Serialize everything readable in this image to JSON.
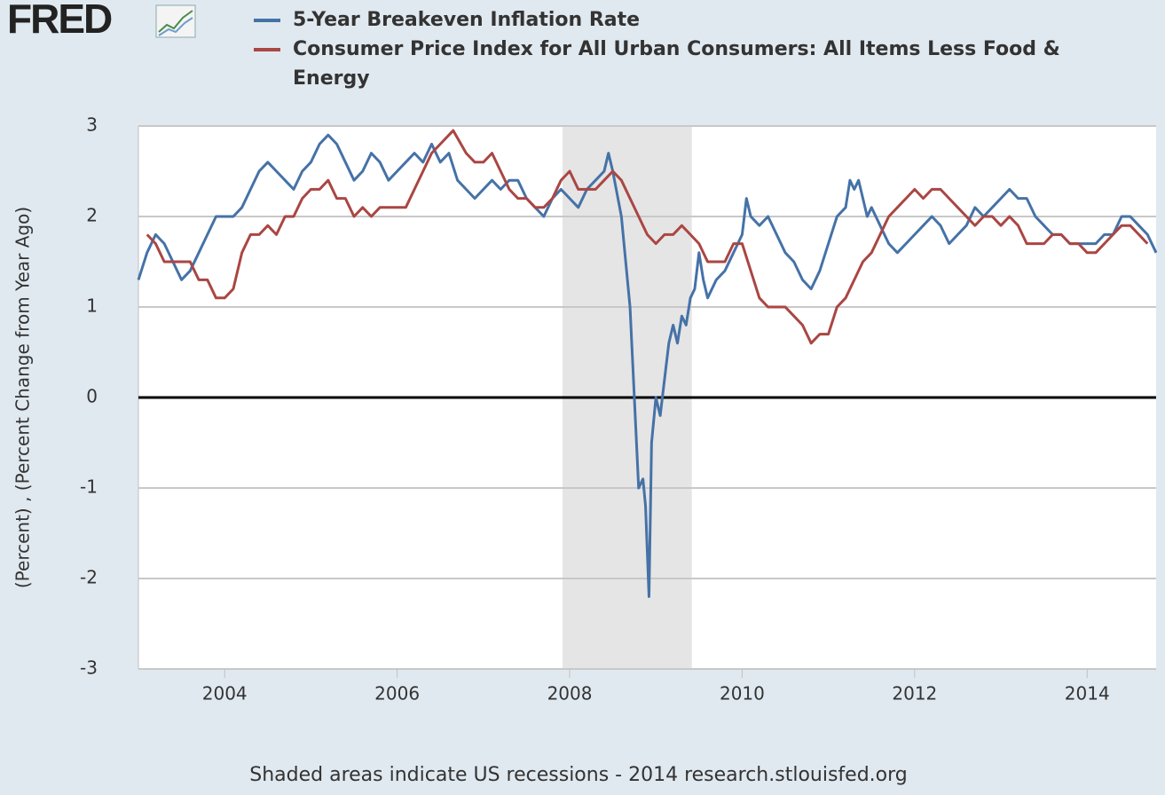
{
  "logo": "FRED",
  "chart_data": {
    "type": "line",
    "ylabel": "(Percent) , (Percent Change from Year Ago)",
    "source_note": "Shaded areas indicate US recessions - 2014 research.stlouisfed.org",
    "xlim": [
      2003.0,
      2014.8
    ],
    "xticks": [
      2004,
      2006,
      2008,
      2010,
      2012,
      2014
    ],
    "ylim": [
      -3,
      3
    ],
    "yticks": [
      -3,
      -2,
      -1,
      0,
      1,
      2,
      3
    ],
    "grid": true,
    "zero_line": true,
    "recessions": [
      {
        "start": 2007.917,
        "end": 2009.417
      }
    ],
    "series": [
      {
        "name": "5-Year Breakeven Inflation Rate",
        "color": "#4572a7",
        "x": [
          2003.0,
          2003.1,
          2003.2,
          2003.3,
          2003.4,
          2003.5,
          2003.6,
          2003.7,
          2003.8,
          2003.9,
          2004.0,
          2004.1,
          2004.2,
          2004.3,
          2004.4,
          2004.5,
          2004.6,
          2004.7,
          2004.8,
          2004.9,
          2005.0,
          2005.1,
          2005.2,
          2005.3,
          2005.4,
          2005.5,
          2005.6,
          2005.7,
          2005.8,
          2005.9,
          2006.0,
          2006.1,
          2006.2,
          2006.3,
          2006.4,
          2006.5,
          2006.6,
          2006.7,
          2006.8,
          2006.9,
          2007.0,
          2007.1,
          2007.2,
          2007.3,
          2007.4,
          2007.5,
          2007.6,
          2007.7,
          2007.8,
          2007.9,
          2008.0,
          2008.1,
          2008.2,
          2008.3,
          2008.4,
          2008.45,
          2008.5,
          2008.6,
          2008.65,
          2008.7,
          2008.75,
          2008.8,
          2008.85,
          2008.88,
          2008.92,
          2008.95,
          2009.0,
          2009.05,
          2009.1,
          2009.15,
          2009.2,
          2009.25,
          2009.3,
          2009.35,
          2009.4,
          2009.45,
          2009.5,
          2009.55,
          2009.6,
          2009.7,
          2009.8,
          2009.9,
          2010.0,
          2010.05,
          2010.1,
          2010.2,
          2010.3,
          2010.4,
          2010.5,
          2010.6,
          2010.7,
          2010.8,
          2010.9,
          2011.0,
          2011.1,
          2011.2,
          2011.25,
          2011.3,
          2011.35,
          2011.45,
          2011.5,
          2011.6,
          2011.7,
          2011.8,
          2011.9,
          2012.0,
          2012.1,
          2012.2,
          2012.3,
          2012.4,
          2012.5,
          2012.6,
          2012.7,
          2012.8,
          2012.9,
          2013.0,
          2013.1,
          2013.2,
          2013.3,
          2013.4,
          2013.5,
          2013.6,
          2013.7,
          2013.8,
          2013.9,
          2014.0,
          2014.1,
          2014.2,
          2014.3,
          2014.4,
          2014.5,
          2014.6,
          2014.7,
          2014.8
        ],
        "values": [
          1.3,
          1.6,
          1.8,
          1.7,
          1.5,
          1.3,
          1.4,
          1.6,
          1.8,
          2.0,
          2.0,
          2.0,
          2.1,
          2.3,
          2.5,
          2.6,
          2.5,
          2.4,
          2.3,
          2.5,
          2.6,
          2.8,
          2.9,
          2.8,
          2.6,
          2.4,
          2.5,
          2.7,
          2.6,
          2.4,
          2.5,
          2.6,
          2.7,
          2.6,
          2.8,
          2.6,
          2.7,
          2.4,
          2.3,
          2.2,
          2.3,
          2.4,
          2.3,
          2.4,
          2.4,
          2.2,
          2.1,
          2.0,
          2.2,
          2.3,
          2.2,
          2.1,
          2.3,
          2.4,
          2.5,
          2.7,
          2.5,
          2.0,
          1.5,
          1.0,
          0.0,
          -1.0,
          -0.9,
          -1.2,
          -2.2,
          -0.5,
          0.0,
          -0.2,
          0.2,
          0.6,
          0.8,
          0.6,
          0.9,
          0.8,
          1.1,
          1.2,
          1.6,
          1.3,
          1.1,
          1.3,
          1.4,
          1.6,
          1.8,
          2.2,
          2.0,
          1.9,
          2.0,
          1.8,
          1.6,
          1.5,
          1.3,
          1.2,
          1.4,
          1.7,
          2.0,
          2.1,
          2.4,
          2.3,
          2.4,
          2.0,
          2.1,
          1.9,
          1.7,
          1.6,
          1.7,
          1.8,
          1.9,
          2.0,
          1.9,
          1.7,
          1.8,
          1.9,
          2.1,
          2.0,
          2.1,
          2.2,
          2.3,
          2.2,
          2.2,
          2.0,
          1.9,
          1.8,
          1.8,
          1.7,
          1.7,
          1.7,
          1.7,
          1.8,
          1.8,
          2.0,
          2.0,
          1.9,
          1.8,
          1.6
        ]
      },
      {
        "name": "Consumer Price Index for All Urban Consumers: All Items Less Food & Energy",
        "color": "#aa4643",
        "x": [
          2003.1,
          2003.2,
          2003.3,
          2003.4,
          2003.5,
          2003.6,
          2003.7,
          2003.8,
          2003.9,
          2004.0,
          2004.1,
          2004.2,
          2004.3,
          2004.4,
          2004.5,
          2004.6,
          2004.7,
          2004.8,
          2004.9,
          2005.0,
          2005.1,
          2005.2,
          2005.3,
          2005.4,
          2005.5,
          2005.6,
          2005.7,
          2005.8,
          2005.9,
          2006.0,
          2006.1,
          2006.2,
          2006.3,
          2006.4,
          2006.5,
          2006.65,
          2006.8,
          2006.9,
          2007.0,
          2007.1,
          2007.2,
          2007.3,
          2007.4,
          2007.5,
          2007.6,
          2007.7,
          2007.8,
          2007.9,
          2008.0,
          2008.1,
          2008.2,
          2008.3,
          2008.4,
          2008.5,
          2008.6,
          2008.7,
          2008.8,
          2008.9,
          2009.0,
          2009.1,
          2009.2,
          2009.3,
          2009.4,
          2009.5,
          2009.6,
          2009.7,
          2009.8,
          2009.9,
          2010.0,
          2010.1,
          2010.2,
          2010.3,
          2010.4,
          2010.5,
          2010.6,
          2010.7,
          2010.8,
          2010.9,
          2011.0,
          2011.1,
          2011.2,
          2011.3,
          2011.4,
          2011.5,
          2011.6,
          2011.7,
          2011.8,
          2011.9,
          2012.0,
          2012.1,
          2012.2,
          2012.3,
          2012.4,
          2012.5,
          2012.6,
          2012.7,
          2012.8,
          2012.9,
          2013.0,
          2013.1,
          2013.2,
          2013.3,
          2013.4,
          2013.5,
          2013.6,
          2013.7,
          2013.8,
          2013.9,
          2014.0,
          2014.1,
          2014.2,
          2014.3,
          2014.4,
          2014.5,
          2014.6,
          2014.7
        ],
        "values": [
          1.8,
          1.7,
          1.5,
          1.5,
          1.5,
          1.5,
          1.3,
          1.3,
          1.1,
          1.1,
          1.2,
          1.6,
          1.8,
          1.8,
          1.9,
          1.8,
          2.0,
          2.0,
          2.2,
          2.3,
          2.3,
          2.4,
          2.2,
          2.2,
          2.0,
          2.1,
          2.0,
          2.1,
          2.1,
          2.1,
          2.1,
          2.3,
          2.5,
          2.7,
          2.8,
          2.95,
          2.7,
          2.6,
          2.6,
          2.7,
          2.5,
          2.3,
          2.2,
          2.2,
          2.1,
          2.1,
          2.2,
          2.4,
          2.5,
          2.3,
          2.3,
          2.3,
          2.4,
          2.5,
          2.4,
          2.2,
          2.0,
          1.8,
          1.7,
          1.8,
          1.8,
          1.9,
          1.8,
          1.7,
          1.5,
          1.5,
          1.5,
          1.7,
          1.7,
          1.4,
          1.1,
          1.0,
          1.0,
          1.0,
          0.9,
          0.8,
          0.6,
          0.7,
          0.7,
          1.0,
          1.1,
          1.3,
          1.5,
          1.6,
          1.8,
          2.0,
          2.1,
          2.2,
          2.3,
          2.2,
          2.3,
          2.3,
          2.2,
          2.1,
          2.0,
          1.9,
          2.0,
          2.0,
          1.9,
          2.0,
          1.9,
          1.7,
          1.7,
          1.7,
          1.8,
          1.8,
          1.7,
          1.7,
          1.6,
          1.6,
          1.7,
          1.8,
          1.9,
          1.9,
          1.8,
          1.7
        ]
      }
    ]
  }
}
